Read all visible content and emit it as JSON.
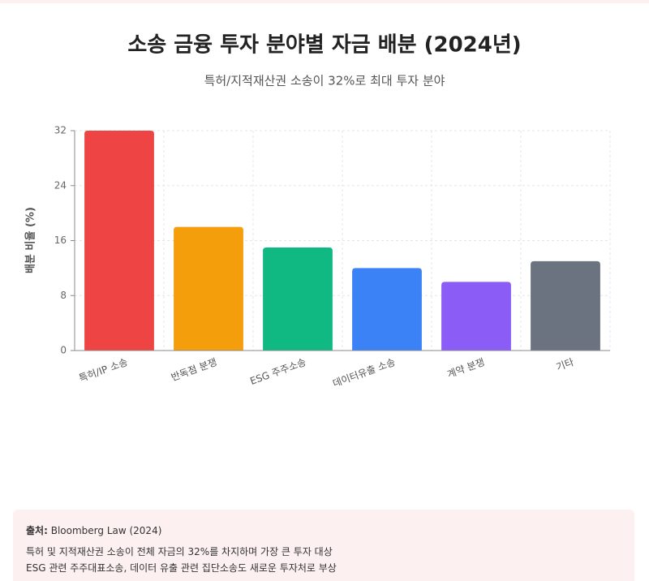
{
  "chart_data": {
    "type": "bar",
    "title": "소송 금융 투자 분야별 자금 배분 (2024년)",
    "subtitle": "특허/지적재산권 소송이 32%로 최대 투자 분야",
    "y_label": "배분 비율 (%)",
    "categories": [
      "특허/IP 소송",
      "반독점 분쟁",
      "ESG 주주소송",
      "데이터유출 소송",
      "계약 분쟁",
      "기타"
    ],
    "values": [
      32,
      18,
      15,
      12,
      10,
      13
    ],
    "colors": [
      "#ef4444",
      "#f59e0b",
      "#10b981",
      "#3b82f6",
      "#8b5cf6",
      "#6b7280"
    ],
    "ylim": [
      0,
      32
    ],
    "yticks": [
      0,
      8,
      16,
      24,
      32
    ],
    "grid": true
  },
  "footer": {
    "source_label": "출처:",
    "source": "Bloomberg Law (2024)",
    "notes": [
      "특허 및 지적재산권 소송이 전체 자금의 32%를 차지하며 가장 큰 투자 대상",
      "ESG 관련 주주대표소송, 데이터 유출 관련 집단소송도 새로운 투자처로 부상"
    ]
  }
}
